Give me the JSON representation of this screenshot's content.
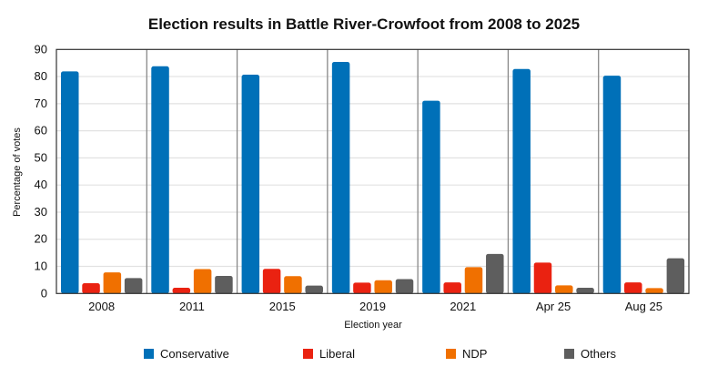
{
  "chart_data": {
    "type": "bar",
    "title": "Election results in Battle River-Crowfoot from 2008 to 2025",
    "xlabel": "Election year",
    "ylabel": "Percentage of votes",
    "ylim": [
      0,
      90
    ],
    "yticks": [
      0,
      10,
      20,
      30,
      40,
      50,
      60,
      70,
      80,
      90
    ],
    "grid": true,
    "legend_position": "bottom",
    "categories": [
      "2008",
      "2011",
      "2015",
      "2019",
      "2021",
      "Apr 25",
      "Aug 25"
    ],
    "series": [
      {
        "name": "Conservative",
        "color": "#0070b8",
        "values": [
          81.9,
          83.8,
          80.7,
          85.4,
          71.1,
          82.8,
          80.3
        ]
      },
      {
        "name": "Liberal",
        "color": "#ea2211",
        "values": [
          3.8,
          2.1,
          9.1,
          4.0,
          4.1,
          11.4,
          4.1
        ]
      },
      {
        "name": "NDP",
        "color": "#f07000",
        "values": [
          7.8,
          9.0,
          6.4,
          4.9,
          9.7,
          3.0,
          2.0
        ]
      },
      {
        "name": "Others",
        "color": "#5e5e5e",
        "values": [
          5.7,
          6.5,
          2.9,
          5.3,
          14.6,
          2.1,
          13.0
        ]
      }
    ]
  }
}
